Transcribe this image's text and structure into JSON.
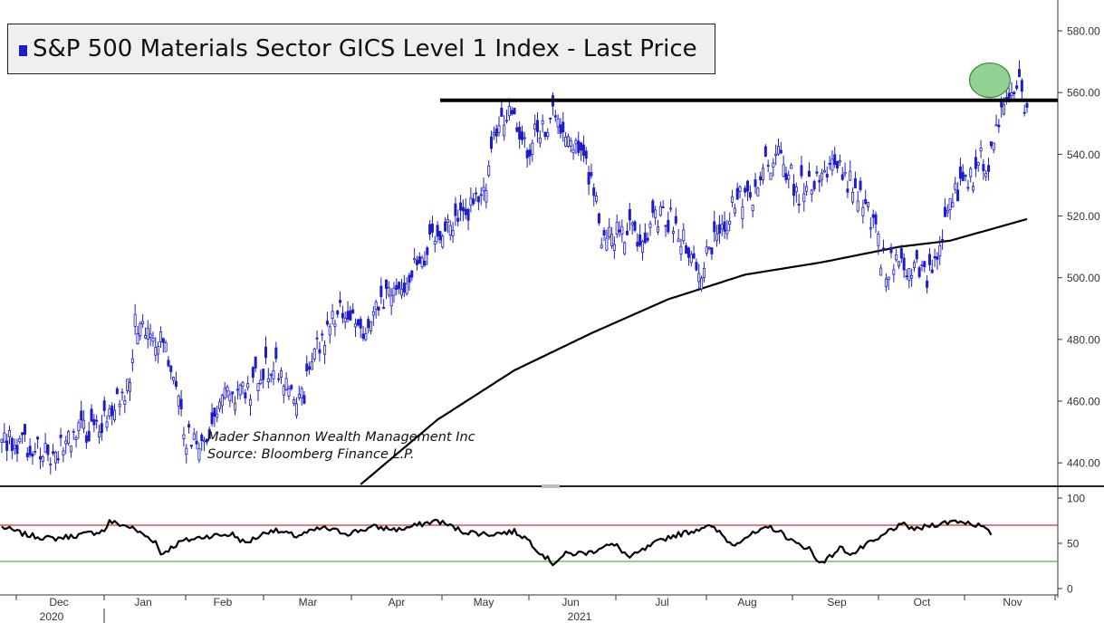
{
  "chart_title": "S&P 500 Materials Sector GICS Level 1 Index - Last Price",
  "watermark": {
    "line1": "Mader Shannon Wealth Management Inc",
    "line2": "Source: Bloomberg Finance L.P."
  },
  "colors": {
    "candle": "#1c1ccc",
    "ma": "#000000",
    "resistance": "#000000",
    "rsi": "#000000",
    "rsi_upper": "#cc0000",
    "rsi_lower": "#22aa22",
    "highlight": "#6cc26c"
  },
  "chart_data": [
    {
      "type": "candlestick",
      "title": "S&P 500 Materials Sector GICS Level 1 Index - Last Price",
      "ylim": [
        433,
        590
      ],
      "y_ticks": [
        "440.00",
        "460.00",
        "480.00",
        "500.00",
        "520.00",
        "540.00",
        "560.00",
        "580.00"
      ],
      "y_tick_values": [
        440,
        460,
        480,
        500,
        520,
        540,
        560,
        580
      ],
      "x_ticks": [
        "Dec",
        "Jan",
        "Feb",
        "Mar",
        "Apr",
        "May",
        "Jun",
        "Jul",
        "Aug",
        "Sep",
        "Oct",
        "Nov"
      ],
      "x_year_labels": [
        "2020",
        "2021"
      ],
      "close_anchors": [
        [
          0,
          448
        ],
        [
          10,
          445
        ],
        [
          20,
          444
        ],
        [
          30,
          450
        ],
        [
          40,
          453
        ],
        [
          50,
          464
        ],
        [
          52,
          484
        ],
        [
          57,
          486
        ],
        [
          62,
          479
        ],
        [
          67,
          470
        ],
        [
          72,
          448
        ],
        [
          77,
          446
        ],
        [
          82,
          452
        ],
        [
          87,
          460
        ],
        [
          92,
          462
        ],
        [
          97,
          464
        ],
        [
          102,
          470
        ],
        [
          107,
          470
        ],
        [
          112,
          466
        ],
        [
          117,
          460
        ],
        [
          122,
          475
        ],
        [
          127,
          484
        ],
        [
          132,
          488
        ],
        [
          137,
          486
        ],
        [
          142,
          482
        ],
        [
          147,
          490
        ],
        [
          152,
          494
        ],
        [
          157,
          498
        ],
        [
          162,
          504
        ],
        [
          167,
          510
        ],
        [
          172,
          514
        ],
        [
          177,
          518
        ],
        [
          182,
          522
        ],
        [
          187,
          525
        ],
        [
          191,
          540
        ],
        [
          195,
          553
        ],
        [
          200,
          550
        ],
        [
          205,
          542
        ],
        [
          210,
          548
        ],
        [
          215,
          552
        ],
        [
          220,
          548
        ],
        [
          225,
          542
        ],
        [
          230,
          532
        ],
        [
          234,
          515
        ],
        [
          237,
          512
        ],
        [
          242,
          516
        ],
        [
          247,
          514
        ],
        [
          252,
          516
        ],
        [
          257,
          519
        ],
        [
          262,
          518
        ],
        [
          267,
          512
        ],
        [
          272,
          500
        ],
        [
          277,
          510
        ],
        [
          282,
          518
        ],
        [
          287,
          526
        ],
        [
          292,
          524
        ],
        [
          297,
          535
        ],
        [
          302,
          540
        ],
        [
          307,
          534
        ],
        [
          311,
          528
        ],
        [
          316,
          532
        ],
        [
          321,
          536
        ],
        [
          326,
          535
        ],
        [
          331,
          530
        ],
        [
          336,
          525
        ],
        [
          340,
          518
        ],
        [
          343,
          506
        ],
        [
          346,
          502
        ],
        [
          349,
          508
        ],
        [
          352,
          506
        ],
        [
          355,
          500
        ],
        [
          358,
          503
        ],
        [
          361,
          498
        ],
        [
          364,
          504
        ],
        [
          367,
          515
        ],
        [
          370,
          522
        ],
        [
          373,
          528
        ],
        [
          376,
          533
        ],
        [
          379,
          533
        ],
        [
          382,
          538
        ],
        [
          385,
          538
        ],
        [
          388,
          548
        ],
        [
          391,
          558
        ],
        [
          394,
          562
        ],
        [
          397,
          563
        ],
        [
          399,
          557
        ],
        [
          400,
          555
        ]
      ],
      "ma_anchors": [
        [
          140,
          433
        ],
        [
          170,
          454
        ],
        [
          200,
          470
        ],
        [
          230,
          482
        ],
        [
          260,
          493
        ],
        [
          290,
          501
        ],
        [
          320,
          505
        ],
        [
          350,
          510
        ],
        [
          370,
          512
        ],
        [
          400,
          519
        ]
      ],
      "resistance_level": 557.5,
      "resistance_start_day": 171,
      "highlight": {
        "start_day": 379,
        "end_day": 392,
        "low": 559,
        "high": 569
      }
    },
    {
      "type": "line",
      "name": "RSI",
      "ylim": [
        -5,
        110
      ],
      "y_ticks": [
        "0",
        "50",
        "100"
      ],
      "y_tick_values": [
        0,
        50,
        100
      ],
      "upper_level": 70,
      "lower_level": 30,
      "rsi_anchors": [
        [
          0,
          68
        ],
        [
          10,
          59
        ],
        [
          20,
          55
        ],
        [
          30,
          59
        ],
        [
          40,
          64
        ],
        [
          42,
          74
        ],
        [
          50,
          68
        ],
        [
          60,
          52
        ],
        [
          62,
          38
        ],
        [
          70,
          52
        ],
        [
          80,
          58
        ],
        [
          90,
          60
        ],
        [
          95,
          50
        ],
        [
          105,
          65
        ],
        [
          115,
          58
        ],
        [
          125,
          67
        ],
        [
          135,
          61
        ],
        [
          145,
          68
        ],
        [
          155,
          65
        ],
        [
          165,
          72
        ],
        [
          170,
          75
        ],
        [
          180,
          63
        ],
        [
          190,
          60
        ],
        [
          200,
          63
        ],
        [
          205,
          55
        ],
        [
          210,
          40
        ],
        [
          215,
          28
        ],
        [
          220,
          38
        ],
        [
          230,
          40
        ],
        [
          235,
          48
        ],
        [
          240,
          47
        ],
        [
          245,
          34
        ],
        [
          250,
          42
        ],
        [
          255,
          50
        ],
        [
          260,
          57
        ],
        [
          270,
          64
        ],
        [
          275,
          70
        ],
        [
          280,
          62
        ],
        [
          285,
          48
        ],
        [
          290,
          57
        ],
        [
          295,
          62
        ],
        [
          300,
          68
        ],
        [
          305,
          60
        ],
        [
          310,
          49
        ],
        [
          315,
          45
        ],
        [
          318,
          30
        ],
        [
          322,
          32
        ],
        [
          327,
          45
        ],
        [
          332,
          38
        ],
        [
          337,
          48
        ],
        [
          342,
          54
        ],
        [
          347,
          66
        ],
        [
          352,
          70
        ],
        [
          357,
          65
        ],
        [
          362,
          70
        ],
        [
          367,
          72
        ],
        [
          372,
          75
        ],
        [
          377,
          73
        ],
        [
          382,
          69
        ],
        [
          385,
          62
        ],
        [
          386,
          61
        ]
      ]
    }
  ]
}
